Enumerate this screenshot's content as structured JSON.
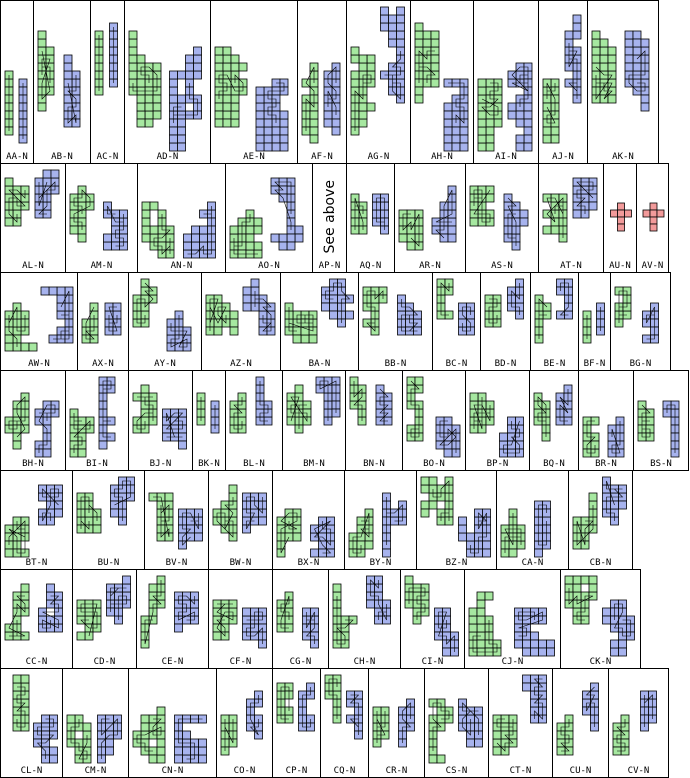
{
  "colors": {
    "green": "#a6e8a0",
    "blue": "#a7b3ee",
    "red": "#f29a9a",
    "stroke": "#000000"
  },
  "note_text": "See above",
  "rows": [
    [
      "AA-N",
      "AB-N",
      "AC-N",
      "AD-N",
      "AE-N",
      "AF-N",
      "AG-N",
      "AH-N",
      "AI-N",
      "AJ-N",
      "AK-N"
    ],
    [
      "AL-N",
      "AM-N",
      "AN-N",
      "AO-N",
      "AP-N",
      "AQ-N",
      "AR-N",
      "AS-N",
      "AT-N",
      "AU-N",
      "AV-N"
    ],
    [
      "AW-N",
      "AX-N",
      "AY-N",
      "AZ-N",
      "BA-N",
      "BB-N",
      "BC-N",
      "BD-N",
      "BE-N",
      "BF-N",
      "BG-N"
    ],
    [
      "BH-N",
      "BI-N",
      "BJ-N",
      "BK-N",
      "BL-N",
      "BM-N",
      "BN-N",
      "BO-N",
      "BP-N",
      "BQ-N",
      "BR-N",
      "BS-N"
    ],
    [
      "BT-N",
      "BU-N",
      "BV-N",
      "BW-N",
      "BX-N",
      "BY-N",
      "BZ-N",
      "CA-N",
      "CB-N"
    ],
    [
      "CC-N",
      "CD-N",
      "CE-N",
      "CF-N",
      "CG-N",
      "CH-N",
      "CI-N",
      "CJ-N",
      "CK-N"
    ],
    [
      "CL-N",
      "CM-N",
      "CN-N",
      "CO-N",
      "CP-N",
      "CQ-N",
      "CR-N",
      "CS-N",
      "CT-N",
      "CU-N",
      "CV-N"
    ]
  ],
  "special": {
    "AP-N": "note",
    "AU-N": "red-cross",
    "AV-N": "red-cross"
  }
}
